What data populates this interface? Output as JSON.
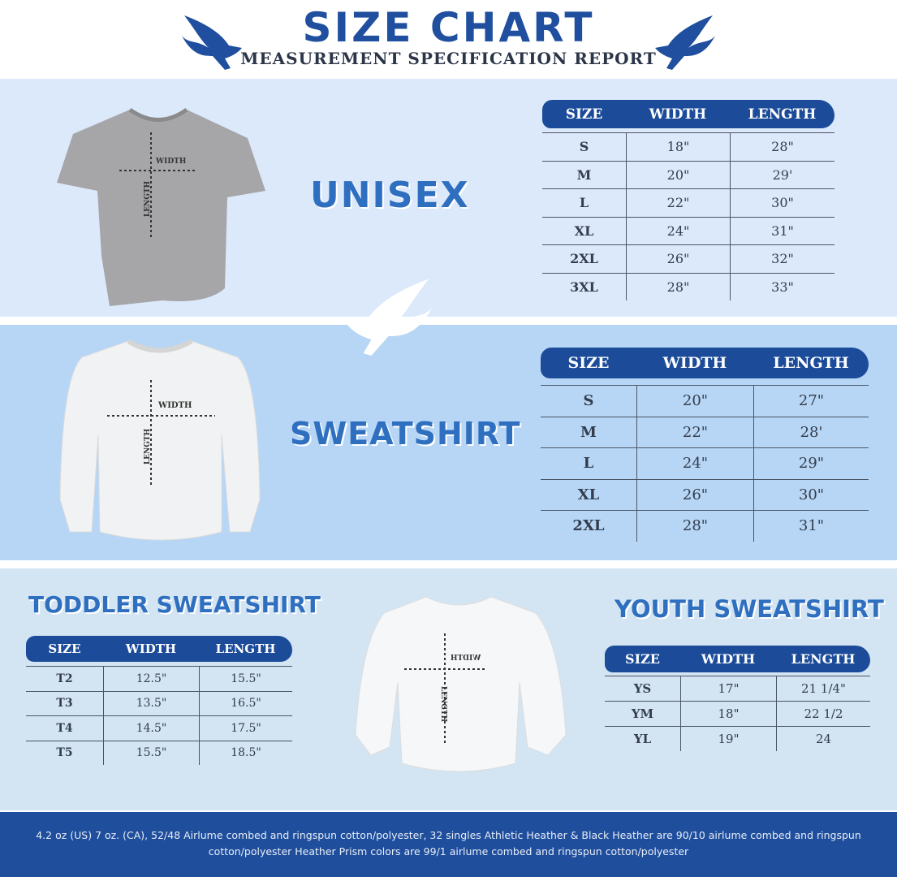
{
  "header": {
    "title": "SIZE CHART",
    "subtitle": "MEASUREMENT SPECIFICATION REPORT"
  },
  "colors": {
    "brand": "#1f4e9c",
    "section_text": "#2f6fc0",
    "band1": "#dce9fb",
    "band2": "#b7d6f5",
    "band3": "#d3e4f2"
  },
  "icons": [
    "dove-icon"
  ],
  "garment_labels": {
    "width": "WIDTH",
    "length": "LENGTH"
  },
  "sections": [
    {
      "title": "UNISEX",
      "columns": [
        "SIZE",
        "WIDTH",
        "LENGTH"
      ],
      "rows": [
        [
          "S",
          "18\"",
          "28\""
        ],
        [
          "M",
          "20\"",
          "29'"
        ],
        [
          "L",
          "22\"",
          "30\""
        ],
        [
          "XL",
          "24\"",
          "31\""
        ],
        [
          "2XL",
          "26\"",
          "32\""
        ],
        [
          "3XL",
          "28\"",
          "33\""
        ]
      ]
    },
    {
      "title": "SWEATSHIRT",
      "columns": [
        "SIZE",
        "WIDTH",
        "LENGTH"
      ],
      "rows": [
        [
          "S",
          "20\"",
          "27\""
        ],
        [
          "M",
          "22\"",
          "28'"
        ],
        [
          "L",
          "24\"",
          "29\""
        ],
        [
          "XL",
          "26\"",
          "30\""
        ],
        [
          "2XL",
          "28\"",
          "31\""
        ]
      ]
    },
    {
      "title": "TODDLER SWEATSHIRT",
      "columns": [
        "SIZE",
        "WIDTH",
        "LENGTH"
      ],
      "rows": [
        [
          "T2",
          "12.5\"",
          "15.5\""
        ],
        [
          "T3",
          "13.5\"",
          "16.5\""
        ],
        [
          "T4",
          "14.5\"",
          "17.5\""
        ],
        [
          "T5",
          "15.5\"",
          "18.5\""
        ]
      ]
    },
    {
      "title": "YOUTH SWEATSHIRT",
      "columns": [
        "SIZE",
        "WIDTH",
        "LENGTH"
      ],
      "rows": [
        [
          "YS",
          "17\"",
          "21 1/4\""
        ],
        [
          "YM",
          "18\"",
          "22 1/2"
        ],
        [
          "YL",
          "19\"",
          "24"
        ]
      ]
    }
  ],
  "footer": "4.2 oz (US) 7 oz. (CA), 52/48 Airlume combed and ringspun cotton/polyester, 32 singles Athletic Heather & Black Heather are 90/10 airlume combed and ringspun cotton/polyester Heather Prism colors are 99/1 airlume combed and ringspun cotton/polyester"
}
